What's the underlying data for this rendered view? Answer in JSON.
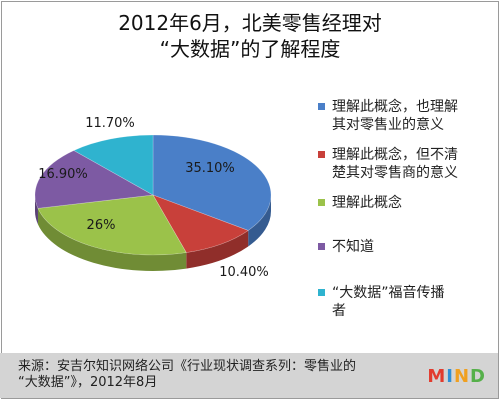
{
  "chart_data": {
    "type": "pie",
    "title": "2012年6月，北美零售经理对",
    "subtitle": "“大数据”的了解程度",
    "slices": [
      {
        "label": "理解此概念，也理解其对零售业的意义",
        "value": 35.1,
        "display": "35.10%",
        "color": "#4a7fc8"
      },
      {
        "label": "理解此概念，但不清楚其对零售商的意义",
        "value": 10.4,
        "display": "10.40%",
        "color": "#c8403a"
      },
      {
        "label": "理解此概念",
        "value": 26,
        "display": "26%",
        "color": "#9bc24a"
      },
      {
        "label": "不知道",
        "value": 16.9,
        "display": "16.90%",
        "color": "#7d5aa3"
      },
      {
        "label": "“大数据”福音传播者",
        "value": 11.7,
        "display": "11.70%",
        "color": "#2fb3cf"
      }
    ],
    "legend_position": "right"
  },
  "legend": {
    "items": [
      {
        "lines": [
          "理解此概念，也理解",
          "其对零售业的意义"
        ],
        "color": "#4a7fc8"
      },
      {
        "lines": [
          "理解此概念，但不清",
          "楚其对零售商的意义"
        ],
        "color": "#c8403a"
      },
      {
        "lines": [
          "理解此概念"
        ],
        "color": "#9bc24a"
      },
      {
        "lines": [
          "不知道"
        ],
        "color": "#7d5aa3"
      },
      {
        "lines": [
          "“大数据”福音传播",
          "者"
        ],
        "color": "#2fb3cf"
      }
    ]
  },
  "source": {
    "line1": "来源：安吉尔知识网络公司《行业现状调查系列：零售业的",
    "line2": "“大数据”》，2012年8月"
  },
  "logo": {
    "letters": [
      "M",
      "I",
      "N",
      "D"
    ],
    "colors": [
      "#e23b2e",
      "#2f8fd6",
      "#f0a020",
      "#56b04a"
    ]
  }
}
